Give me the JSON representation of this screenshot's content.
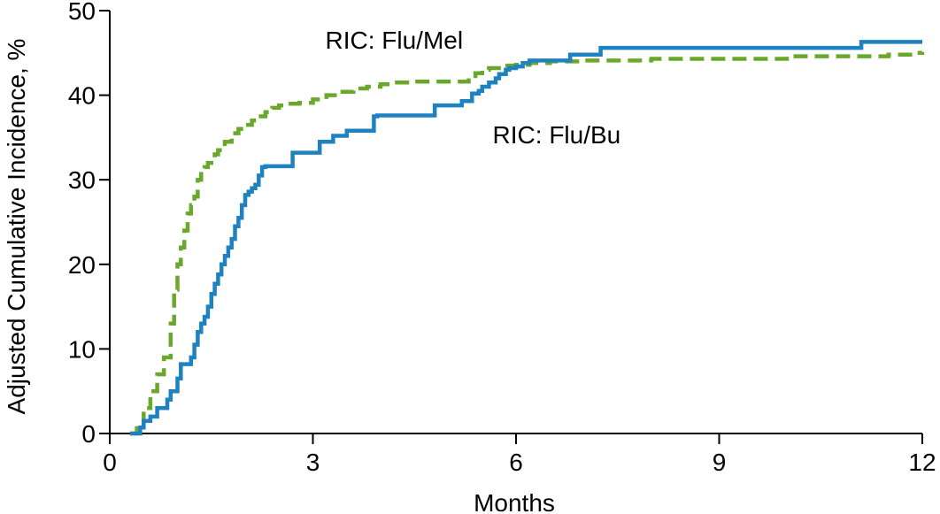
{
  "chart_data": {
    "type": "line",
    "title": "",
    "xlabel": "Months",
    "ylabel": "Adjusted Cumulative Incidence, %",
    "xlim": [
      0,
      12
    ],
    "ylim": [
      0,
      50
    ],
    "x_ticks": [
      0,
      3,
      6,
      9,
      12
    ],
    "y_ticks": [
      0,
      10,
      20,
      30,
      40,
      50
    ],
    "grid": false,
    "legend": "none (series labelled inline)",
    "step": true,
    "series": [
      {
        "name": "RIC: Flu/Bu",
        "color": "#1f82c0",
        "dash": "solid",
        "label": "RIC: Flu/Bu",
        "x": [
          0.3,
          0.45,
          0.5,
          0.6,
          0.7,
          0.85,
          0.9,
          1.0,
          1.05,
          1.2,
          1.25,
          1.3,
          1.35,
          1.4,
          1.45,
          1.5,
          1.55,
          1.6,
          1.65,
          1.7,
          1.75,
          1.8,
          1.85,
          1.9,
          1.95,
          2.0,
          2.05,
          2.1,
          2.15,
          2.2,
          2.25,
          2.3,
          2.4,
          2.5,
          2.7,
          2.75,
          3.1,
          3.3,
          3.5,
          3.9,
          3.95,
          4.4,
          4.8,
          4.85,
          5.2,
          5.35,
          5.45,
          5.5,
          5.6,
          5.7,
          5.75,
          5.85,
          5.9,
          6.0,
          6.1,
          6.2,
          6.4,
          6.8,
          7.25,
          8.0,
          11.1,
          12.0
        ],
        "y": [
          0,
          0.7,
          1.5,
          2,
          3,
          4,
          5,
          6.5,
          8.2,
          9,
          10.5,
          12,
          13,
          13.8,
          15,
          16.5,
          17.7,
          18.8,
          20,
          21,
          22,
          23,
          24.5,
          25.5,
          27,
          28.2,
          28.6,
          29,
          29.4,
          30.5,
          31.5,
          31.6,
          31.6,
          31.6,
          33.2,
          33.2,
          34.5,
          35.2,
          35.8,
          37.5,
          37.6,
          37.6,
          38.8,
          38.8,
          39.3,
          40.2,
          40.5,
          41,
          41.5,
          42,
          42.5,
          43,
          43.2,
          43.4,
          43.8,
          44.1,
          44.1,
          44.8,
          45.6,
          45.6,
          46.3,
          46.3
        ]
      },
      {
        "name": "RIC: Flu/Mel",
        "color": "#6aa82c",
        "dash": "dashed",
        "label": "RIC: Flu/Mel",
        "x": [
          0.3,
          0.4,
          0.5,
          0.6,
          0.7,
          0.8,
          0.9,
          0.95,
          1.0,
          1.05,
          1.1,
          1.15,
          1.2,
          1.25,
          1.3,
          1.35,
          1.4,
          1.45,
          1.5,
          1.55,
          1.6,
          1.7,
          1.8,
          1.9,
          2.0,
          2.1,
          2.2,
          2.3,
          2.4,
          2.5,
          2.6,
          2.7,
          2.8,
          3.0,
          3.2,
          3.4,
          3.6,
          3.8,
          4.0,
          4.2,
          4.5,
          5.0,
          5.3,
          5.4,
          5.5,
          5.6,
          5.8,
          6.0,
          6.2,
          6.5,
          7.0,
          8.0,
          10.0,
          11.5,
          11.9,
          12.0
        ],
        "y": [
          0,
          1,
          3,
          5,
          7,
          9,
          13,
          17,
          20,
          22,
          24,
          26,
          27,
          28,
          30,
          31,
          31.5,
          32,
          32.4,
          33,
          33.5,
          34.5,
          35.5,
          36,
          36.5,
          37,
          37.5,
          38,
          38.5,
          38.8,
          39,
          39,
          39.1,
          39.5,
          40,
          40.4,
          40.8,
          41,
          41.3,
          41.5,
          41.6,
          41.6,
          42,
          42.6,
          43,
          43.2,
          43.5,
          43.6,
          43.8,
          44,
          44.1,
          44.3,
          44.6,
          44.8,
          45,
          45.1
        ]
      }
    ],
    "annotations": [
      {
        "text": "RIC: Flu/Mel",
        "x": 4.2,
        "y": 45.5
      },
      {
        "text": "RIC: Flu/Bu",
        "x": 6.6,
        "y": 34.3
      }
    ]
  }
}
